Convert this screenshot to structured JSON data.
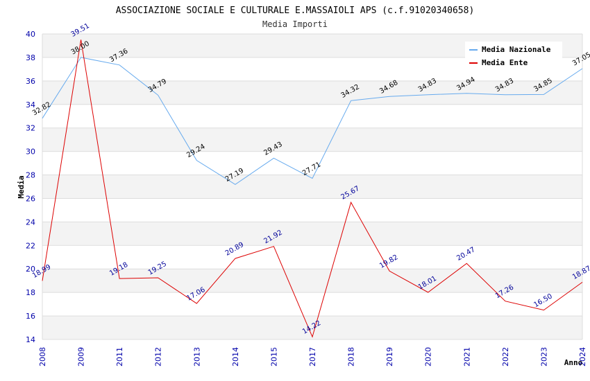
{
  "chart_data": {
    "type": "line",
    "title": "ASSOCIAZIONE SOCIALE E CULTURALE E.MASSAIOLI APS (c.f.91020340658)",
    "subtitle": "Media Importi",
    "xlabel": "Anno",
    "ylabel": "Media",
    "ylim": [
      14,
      40
    ],
    "yticks": [
      14,
      16,
      18,
      20,
      22,
      24,
      26,
      28,
      30,
      32,
      34,
      36,
      38,
      40
    ],
    "categories": [
      "2008",
      "2009",
      "2011",
      "2012",
      "2013",
      "2014",
      "2015",
      "2017",
      "2018",
      "2019",
      "2020",
      "2021",
      "2022",
      "2023",
      "2024"
    ],
    "series": [
      {
        "name": "Media Nazionale",
        "color": "#66aaee",
        "label_color": "#000000",
        "values": [
          32.82,
          38.0,
          37.36,
          34.79,
          29.24,
          27.19,
          29.43,
          27.71,
          34.32,
          34.68,
          34.83,
          34.94,
          34.83,
          34.85,
          37.05
        ],
        "labels": [
          "32.82",
          "38.00",
          "37.36",
          "34.79",
          "29.24",
          "27.19",
          "29.43",
          "27.71",
          "34.32",
          "34.68",
          "34.83",
          "34.94",
          "34.83",
          "34.85",
          "37.05"
        ]
      },
      {
        "name": "Media Ente",
        "color": "#dd0000",
        "label_color": "#000099",
        "values": [
          18.99,
          39.51,
          19.18,
          19.25,
          17.06,
          20.89,
          21.92,
          14.22,
          25.67,
          19.82,
          18.01,
          20.47,
          17.26,
          16.5,
          18.87
        ],
        "labels": [
          "18.99",
          "39.51",
          "19.18",
          "19.25",
          "17.06",
          "20.89",
          "21.92",
          "14.22",
          "25.67",
          "19.82",
          "18.01",
          "20.47",
          "17.26",
          "16.50",
          "18.87"
        ]
      }
    ],
    "legend": "top-right",
    "grid": true
  }
}
